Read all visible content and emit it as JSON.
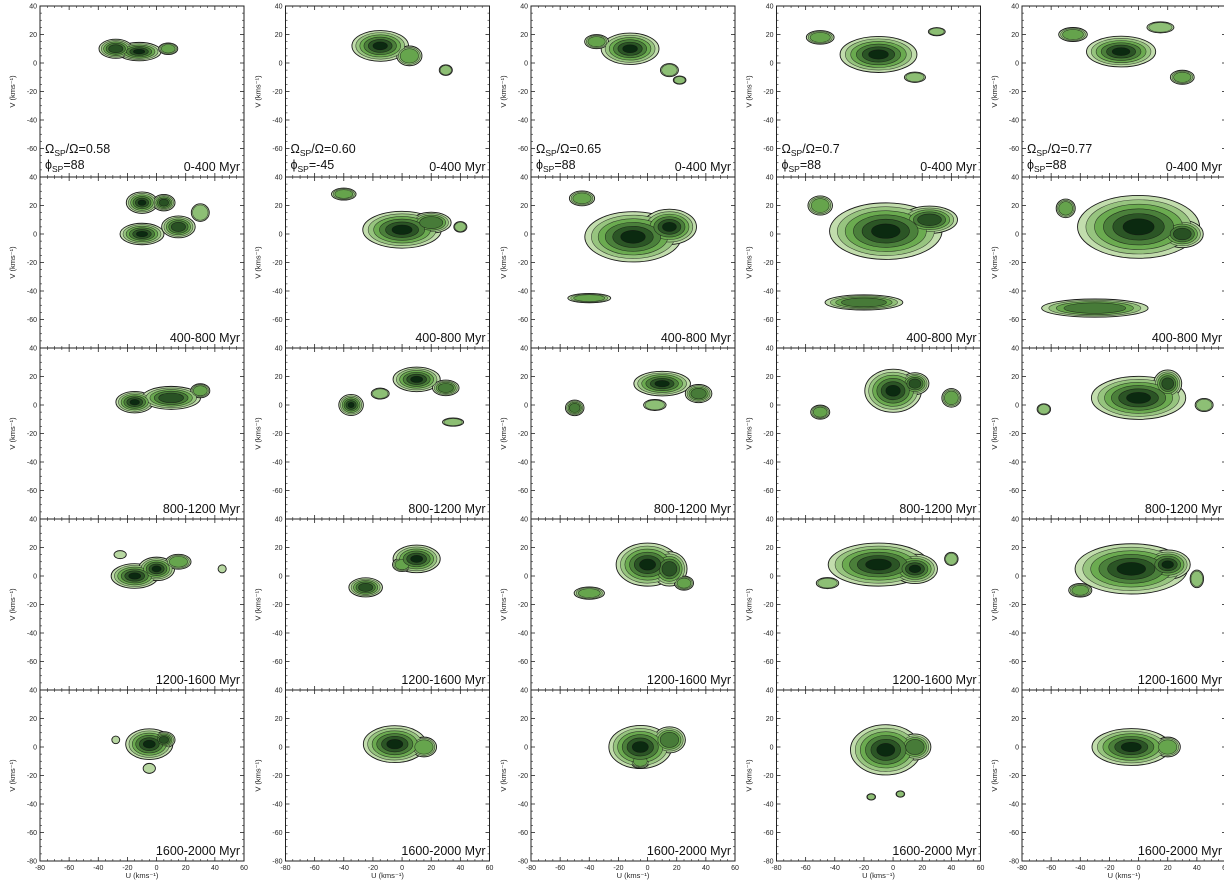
{
  "chart_data": {
    "type": "contour",
    "layout": "5 rows x 5 columns of U-V velocity-space density contour panels",
    "xlabel": "U (kms⁻¹)",
    "ylabel": "V (kms⁻¹)",
    "xlim": [
      -80,
      60
    ],
    "ylim": [
      -80,
      40
    ],
    "xticks": [
      -80,
      -60,
      -40,
      -20,
      0,
      20,
      40,
      60
    ],
    "yticks": [
      -80,
      -60,
      -40,
      -20,
      0,
      20,
      40
    ],
    "x_tick_labels_shown_on": "bottom row only",
    "y_tick_labels_shown_on": "every panel",
    "colormap": {
      "low": "#eef6dc",
      "mid": "#6bab50",
      "high": "#0b2a10"
    },
    "contour_levels": 6,
    "columns": [
      {
        "omega": "Ω",
        "sp": "SP",
        "ratio": "0.58",
        "phi_sym": "ϕ",
        "phi": "88"
      },
      {
        "omega": "Ω",
        "sp": "SP",
        "ratio": "0.60",
        "phi_sym": "ϕ",
        "phi": "-45"
      },
      {
        "omega": "Ω",
        "sp": "SP",
        "ratio": "0.65",
        "phi_sym": "ϕ",
        "phi": "88"
      },
      {
        "omega": "Ω",
        "sp": "SP",
        "ratio": "0.7",
        "phi_sym": "ϕ",
        "phi": "88"
      },
      {
        "omega": "Ω",
        "sp": "SP",
        "ratio": "0.77",
        "phi_sym": "ϕ",
        "phi": "88"
      }
    ],
    "rows": [
      "0-400 Myr",
      "400-800 Myr",
      "800-1200 Myr",
      "1200-1600 Myr",
      "1600-2000 Myr"
    ],
    "blobs": [
      [
        [
          [
            -12,
            8,
            14,
            6,
            0.95
          ],
          [
            -28,
            10,
            12,
            7,
            0.7
          ],
          [
            8,
            10,
            8,
            5,
            0.4
          ]
        ],
        [
          [
            -15,
            12,
            18,
            10,
            0.95
          ],
          [
            5,
            5,
            10,
            8,
            0.5
          ],
          [
            30,
            -5,
            6,
            5,
            0.25
          ]
        ],
        [
          [
            -12,
            10,
            18,
            10,
            1
          ],
          [
            -35,
            15,
            10,
            6,
            0.4
          ],
          [
            15,
            -5,
            8,
            6,
            0.3
          ],
          [
            22,
            -12,
            6,
            4,
            0.2
          ]
        ],
        [
          [
            -10,
            6,
            25,
            12,
            0.9
          ],
          [
            -50,
            18,
            12,
            6,
            0.35
          ],
          [
            30,
            22,
            8,
            4,
            0.2
          ],
          [
            15,
            -10,
            10,
            5,
            0.2
          ]
        ],
        [
          [
            -12,
            8,
            22,
            10,
            0.95
          ],
          [
            -45,
            20,
            12,
            6,
            0.4
          ],
          [
            30,
            -10,
            10,
            6,
            0.4
          ],
          [
            15,
            25,
            12,
            5,
            0.3
          ]
        ]
      ],
      [
        [
          [
            -10,
            22,
            10,
            7,
            0.95
          ],
          [
            5,
            22,
            8,
            6,
            0.7
          ],
          [
            -10,
            0,
            14,
            7,
            0.95
          ],
          [
            15,
            5,
            12,
            8,
            0.7
          ],
          [
            30,
            15,
            8,
            8,
            0.3
          ]
        ],
        [
          [
            -40,
            28,
            10,
            5,
            0.45
          ],
          [
            0,
            3,
            25,
            12,
            0.95
          ],
          [
            20,
            8,
            15,
            8,
            0.6
          ],
          [
            40,
            5,
            6,
            5,
            0.25
          ]
        ],
        [
          [
            -10,
            -2,
            30,
            16,
            1
          ],
          [
            15,
            5,
            18,
            12,
            0.85
          ],
          [
            -45,
            25,
            10,
            6,
            0.5
          ],
          [
            -40,
            -45,
            18,
            4,
            0.4
          ]
        ],
        [
          [
            -5,
            2,
            35,
            18,
            1
          ],
          [
            25,
            10,
            20,
            10,
            0.7
          ],
          [
            -50,
            20,
            10,
            8,
            0.45
          ],
          [
            -20,
            -48,
            30,
            6,
            0.55
          ]
        ],
        [
          [
            0,
            5,
            38,
            20,
            1
          ],
          [
            30,
            0,
            15,
            10,
            0.7
          ],
          [
            -50,
            18,
            8,
            8,
            0.4
          ],
          [
            -30,
            -52,
            40,
            7,
            0.6
          ]
        ]
      ],
      [
        [
          [
            -15,
            2,
            12,
            7,
            0.95
          ],
          [
            10,
            5,
            20,
            8,
            0.8
          ],
          [
            30,
            10,
            8,
            6,
            0.4
          ]
        ],
        [
          [
            -35,
            0,
            8,
            7,
            0.9
          ],
          [
            10,
            18,
            15,
            8,
            0.95
          ],
          [
            30,
            12,
            10,
            6,
            0.6
          ],
          [
            -15,
            8,
            8,
            5,
            0.3
          ],
          [
            35,
            -12,
            10,
            4,
            0.2
          ]
        ],
        [
          [
            -50,
            -2,
            7,
            6,
            0.6
          ],
          [
            10,
            15,
            18,
            8,
            0.95
          ],
          [
            35,
            8,
            10,
            7,
            0.6
          ],
          [
            5,
            0,
            10,
            5,
            0.3
          ]
        ],
        [
          [
            -50,
            -5,
            8,
            6,
            0.4
          ],
          [
            0,
            10,
            18,
            14,
            0.95
          ],
          [
            15,
            15,
            10,
            8,
            0.7
          ],
          [
            40,
            5,
            8,
            8,
            0.4
          ]
        ],
        [
          [
            -65,
            -3,
            6,
            5,
            0.3
          ],
          [
            0,
            5,
            30,
            14,
            0.95
          ],
          [
            20,
            15,
            10,
            10,
            0.7
          ],
          [
            45,
            0,
            8,
            6,
            0.3
          ]
        ]
      ],
      [
        [
          [
            -15,
            0,
            15,
            8,
            0.95
          ],
          [
            0,
            5,
            12,
            8,
            0.85
          ],
          [
            15,
            10,
            10,
            6,
            0.5
          ],
          [
            -25,
            15,
            6,
            4,
            0.15
          ],
          [
            45,
            5,
            4,
            4,
            0.15
          ]
        ],
        [
          [
            -25,
            -8,
            12,
            7,
            0.7
          ],
          [
            10,
            12,
            15,
            9,
            0.95
          ],
          [
            0,
            8,
            8,
            6,
            0.4
          ]
        ],
        [
          [
            -40,
            -12,
            12,
            5,
            0.5
          ],
          [
            0,
            8,
            20,
            14,
            0.95
          ],
          [
            15,
            5,
            12,
            12,
            0.8
          ],
          [
            25,
            -5,
            8,
            6,
            0.4
          ]
        ],
        [
          [
            -10,
            8,
            32,
            14,
            0.95
          ],
          [
            15,
            5,
            15,
            10,
            0.85
          ],
          [
            -45,
            -5,
            10,
            5,
            0.3
          ],
          [
            40,
            12,
            6,
            6,
            0.3
          ]
        ],
        [
          [
            -5,
            5,
            35,
            16,
            1
          ],
          [
            20,
            8,
            15,
            10,
            0.85
          ],
          [
            -40,
            -10,
            10,
            6,
            0.35
          ],
          [
            40,
            -2,
            6,
            8,
            0.3
          ]
        ]
      ],
      [
        [
          [
            -5,
            2,
            15,
            10,
            0.95
          ],
          [
            5,
            5,
            8,
            6,
            0.7
          ],
          [
            -5,
            -15,
            6,
            5,
            0.15
          ],
          [
            -28,
            5,
            4,
            4,
            0.1
          ]
        ],
        [
          [
            -5,
            2,
            20,
            12,
            0.95
          ],
          [
            15,
            0,
            10,
            8,
            0.5
          ]
        ],
        [
          [
            -5,
            0,
            20,
            14,
            0.95
          ],
          [
            15,
            5,
            12,
            10,
            0.6
          ],
          [
            -5,
            -10,
            8,
            6,
            0.4
          ]
        ],
        [
          [
            -5,
            -2,
            22,
            16,
            1
          ],
          [
            15,
            0,
            12,
            10,
            0.6
          ],
          [
            -15,
            -35,
            4,
            3,
            0.25
          ],
          [
            5,
            -33,
            4,
            3,
            0.25
          ]
        ],
        [
          [
            -5,
            0,
            25,
            12,
            0.95
          ],
          [
            20,
            0,
            10,
            8,
            0.5
          ]
        ]
      ]
    ]
  }
}
